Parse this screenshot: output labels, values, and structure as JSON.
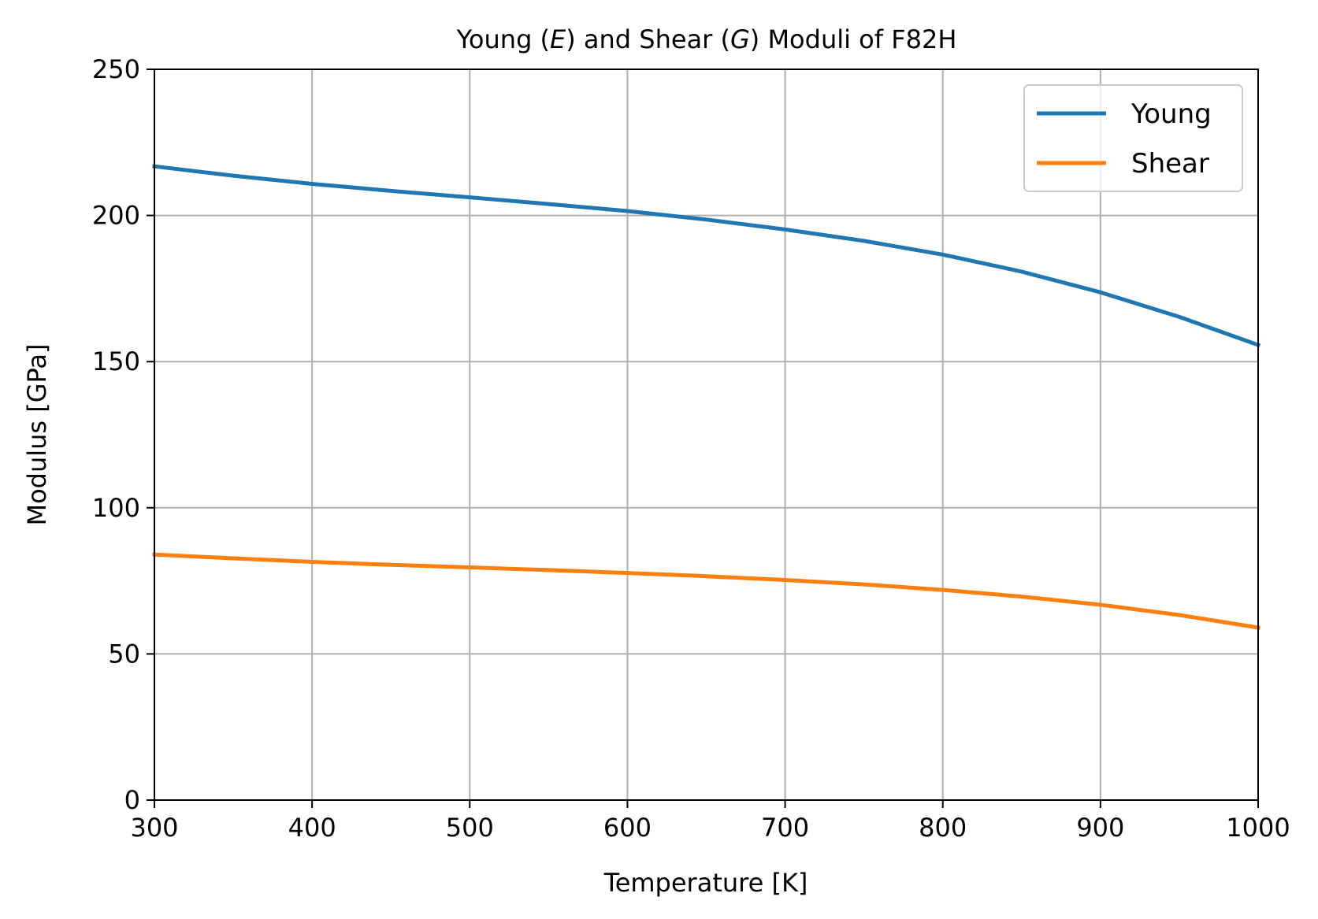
{
  "chart_data": {
    "type": "line",
    "title": "Young (E) and Shear (G) Moduli of F82H",
    "title_parts": {
      "a": "Young (",
      "b": "E",
      "c": ") and Shear (",
      "d": "G",
      "e": ") Moduli of F82H"
    },
    "xlabel": "Temperature [K]",
    "ylabel": "Modulus [GPa]",
    "xlim": [
      300,
      1000
    ],
    "ylim": [
      0,
      250
    ],
    "xticks": [
      300,
      400,
      500,
      600,
      700,
      800,
      900,
      1000
    ],
    "yticks": [
      0,
      50,
      100,
      150,
      200,
      250
    ],
    "grid": true,
    "legend_position": "top-right",
    "x": [
      300,
      350,
      400,
      450,
      500,
      550,
      600,
      650,
      700,
      750,
      800,
      850,
      900,
      950,
      1000
    ],
    "series": [
      {
        "name": "Young",
        "color": "#1f77b4",
        "values": [
          216.8,
          213.6,
          210.8,
          208.4,
          206.2,
          203.9,
          201.5,
          198.6,
          195.2,
          191.3,
          186.6,
          180.8,
          173.7,
          165.3,
          155.7
        ]
      },
      {
        "name": "Shear",
        "color": "#ff7f0e",
        "values": [
          84.0,
          82.7,
          81.5,
          80.5,
          79.6,
          78.7,
          77.7,
          76.6,
          75.3,
          73.8,
          71.9,
          69.6,
          66.8,
          63.3,
          59.0
        ]
      }
    ]
  }
}
